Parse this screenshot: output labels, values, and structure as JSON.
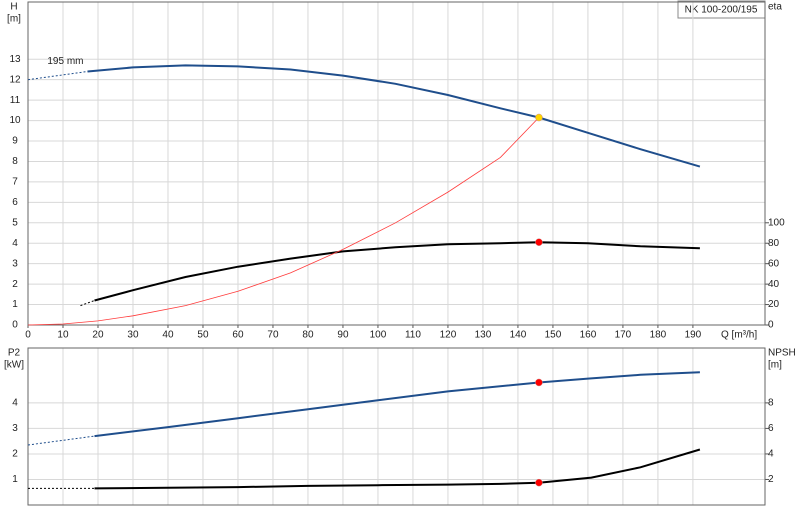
{
  "chart_data": [
    {
      "type": "line",
      "title": "NK 100-200/195",
      "curve_label": "195 mm",
      "xlabel": "Q [m³/h]",
      "ylabel": [
        "H",
        "[m]"
      ],
      "y2label": [
        "eta"
      ],
      "xlim": [
        0,
        210.6
      ],
      "ylim": [
        0,
        15.8
      ],
      "y2lim": [
        0,
        316
      ],
      "grid": true,
      "xticks": [
        0,
        10,
        20,
        30,
        40,
        50,
        60,
        70,
        80,
        90,
        100,
        110,
        120,
        130,
        140,
        150,
        160,
        170,
        180,
        190
      ],
      "yticks": [
        0,
        1,
        2,
        3,
        4,
        5,
        6,
        7,
        8,
        9,
        10,
        11,
        12,
        13
      ],
      "y2ticks": [
        0,
        20,
        40,
        60,
        80,
        100
      ],
      "series": [
        {
          "color": "#1f4e8c",
          "dashed": true,
          "x": [
            0,
            17
          ],
          "values": [
            12.0,
            12.4
          ]
        },
        {
          "color": "#1f4e8c",
          "x": [
            17,
            30,
            45,
            60,
            75,
            90,
            105,
            120,
            135,
            146,
            160,
            175,
            192
          ],
          "values": [
            12.4,
            12.6,
            12.7,
            12.65,
            12.5,
            12.2,
            11.8,
            11.25,
            10.6,
            10.15,
            9.4,
            8.6,
            7.75
          ]
        },
        {
          "color": "#000000",
          "dashed": true,
          "axis": "y2",
          "x": [
            15,
            19
          ],
          "values": [
            19,
            24
          ]
        },
        {
          "color": "#000000",
          "axis": "y2",
          "x": [
            19,
            30,
            45,
            60,
            75,
            90,
            105,
            120,
            135,
            146,
            160,
            175,
            192
          ],
          "values": [
            24,
            34,
            47,
            57,
            65,
            72,
            76,
            79,
            80,
            81,
            80,
            77,
            75
          ]
        },
        {
          "color": "#ff3b3b",
          "thin": true,
          "x": [
            0,
            10,
            20,
            30,
            45,
            60,
            75,
            90,
            105,
            120,
            135,
            146
          ],
          "values": [
            0,
            0.05,
            0.2,
            0.45,
            0.95,
            1.65,
            2.55,
            3.7,
            5.0,
            6.5,
            8.2,
            10.15
          ]
        }
      ],
      "points": [
        {
          "x": 146,
          "y": 10.15,
          "color": "#ffd700"
        },
        {
          "x": 146,
          "y": 81,
          "axis": "y2",
          "color": "#ff0000"
        }
      ]
    },
    {
      "type": "line",
      "ylabel": [
        "P2",
        "[kW]"
      ],
      "y2label": [
        "NPSH",
        "[m]"
      ],
      "xlim": [
        0,
        210.6
      ],
      "ylim": [
        0,
        6.15
      ],
      "y2lim": [
        0,
        12.3
      ],
      "grid": true,
      "yticks": [
        1,
        2,
        3,
        4
      ],
      "y2ticks": [
        2,
        4,
        6,
        8
      ],
      "series": [
        {
          "color": "#1f4e8c",
          "dashed": true,
          "x": [
            0,
            19
          ],
          "values": [
            2.35,
            2.7
          ]
        },
        {
          "color": "#1f4e8c",
          "x": [
            19,
            40,
            60,
            80,
            100,
            120,
            146,
            160,
            175,
            192
          ],
          "values": [
            2.7,
            3.05,
            3.4,
            3.75,
            4.1,
            4.45,
            4.8,
            4.95,
            5.1,
            5.2
          ]
        },
        {
          "color": "#000000",
          "dashed": true,
          "axis": "y2",
          "x": [
            0,
            19
          ],
          "values": [
            1.3,
            1.3
          ]
        },
        {
          "color": "#000000",
          "axis": "y2",
          "x": [
            19,
            40,
            60,
            80,
            100,
            120,
            135,
            146,
            161,
            175,
            192
          ],
          "values": [
            1.3,
            1.35,
            1.4,
            1.5,
            1.55,
            1.6,
            1.65,
            1.75,
            2.15,
            2.95,
            4.35
          ]
        }
      ],
      "points": [
        {
          "x": 146,
          "y": 4.8,
          "color": "#ff0000"
        },
        {
          "x": 146,
          "y": 1.75,
          "axis": "y2",
          "color": "#ff0000"
        }
      ]
    }
  ]
}
